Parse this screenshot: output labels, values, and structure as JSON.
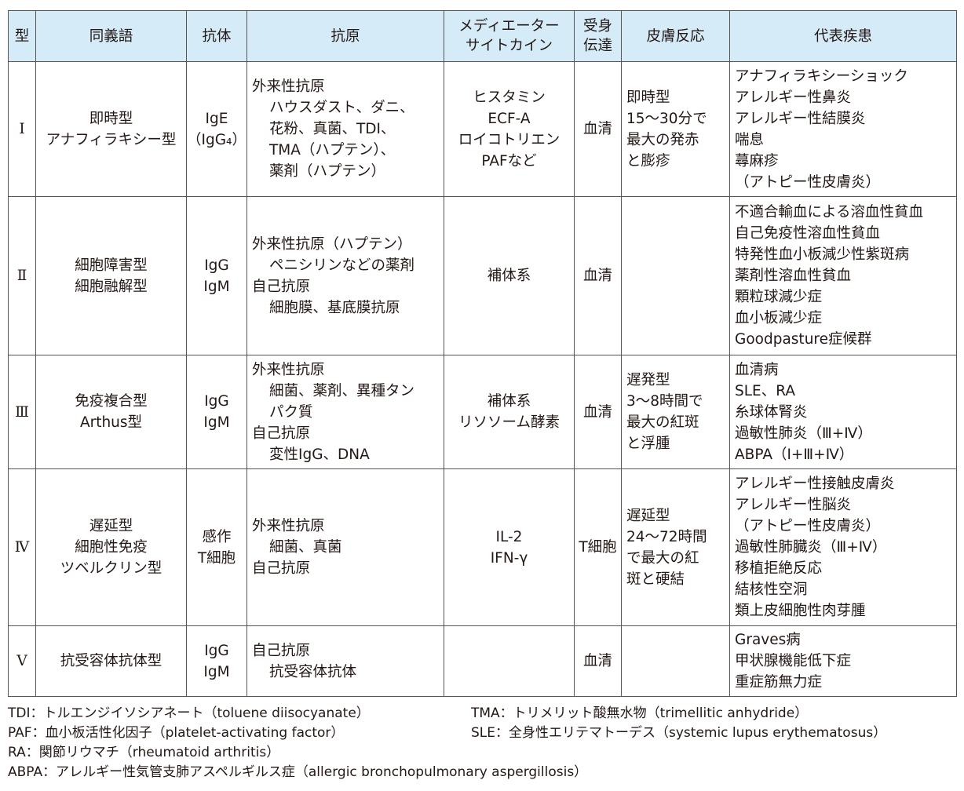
{
  "headers": [
    "型",
    "同義語",
    "抗体",
    "抗原",
    "メディエーター\nサイトカイン",
    "受身\n伝達",
    "皮膚反応",
    "代表疾患"
  ],
  "header_bg": "#d5ebf8",
  "rows": [
    {
      "type": "Ⅰ",
      "synonyms": [
        "即時型",
        "アナフィラキシー型"
      ],
      "antibody": [
        "IgE",
        "（IgG₄）"
      ],
      "antigen": [
        {
          "t": "外来性抗原",
          "i": 0
        },
        {
          "t": "ハウスダスト、ダニ、",
          "i": 1
        },
        {
          "t": "花粉、真菌、TDI、",
          "i": 1
        },
        {
          "t": "TMA（ハプテン）、",
          "i": 1
        },
        {
          "t": "薬剤（ハプテン）",
          "i": 1
        }
      ],
      "mediator": [
        "ヒスタミン",
        "ECF‐A",
        "ロイコトリエン",
        "PAFなど"
      ],
      "transfer": [
        "血清"
      ],
      "skin": [
        "即時型",
        "15〜30分で",
        "最大の発赤",
        "と膨疹"
      ],
      "diseases": [
        "アナフィラキシーショック",
        "アレルギー性鼻炎",
        "アレルギー性結膜炎",
        "喘息",
        "蕁麻疹",
        "（アトピー性皮膚炎）"
      ]
    },
    {
      "type": "Ⅱ",
      "synonyms": [
        "細胞障害型",
        "細胞融解型"
      ],
      "antibody": [
        "IgG",
        "IgM"
      ],
      "antigen": [
        {
          "t": "外来性抗原（ハプテン）",
          "i": 0
        },
        {
          "t": "ペニシリンなどの薬剤",
          "i": 1
        },
        {
          "t": "自己抗原",
          "i": 0
        },
        {
          "t": "細胞膜、基底膜抗原",
          "i": 1
        }
      ],
      "mediator": [
        "補体系"
      ],
      "transfer": [
        "血清"
      ],
      "skin": [],
      "diseases": [
        "不適合輸血による溶血性貧血",
        "自己免疫性溶血性貧血",
        "特発性血小板減少性紫斑病",
        "薬剤性溶血性貧血",
        "顆粒球減少症",
        "血小板減少症",
        "Goodpasture症候群"
      ]
    },
    {
      "type": "Ⅲ",
      "synonyms": [
        "免疫複合型",
        "Arthus型"
      ],
      "antibody": [
        "IgG",
        "IgM"
      ],
      "antigen": [
        {
          "t": "外来性抗原",
          "i": 0
        },
        {
          "t": "細菌、薬剤、異種タン",
          "i": 1
        },
        {
          "t": "パク質",
          "i": 1
        },
        {
          "t": "自己抗原",
          "i": 0
        },
        {
          "t": "変性IgG、DNA",
          "i": 1
        }
      ],
      "mediator": [
        "補体系",
        "リソソーム酵素"
      ],
      "transfer": [
        "血清"
      ],
      "skin": [
        "遅発型",
        "3〜8時間で",
        "最大の紅斑",
        "と浮腫"
      ],
      "diseases": [
        "血清病",
        "SLE、RA",
        "糸球体腎炎",
        "過敏性肺炎（Ⅲ+Ⅳ）",
        "ABPA（Ⅰ+Ⅲ+Ⅳ）"
      ]
    },
    {
      "type": "Ⅳ",
      "synonyms": [
        "遅延型",
        "細胞性免疫",
        "ツベルクリン型"
      ],
      "antibody": [
        "感作",
        "T細胞"
      ],
      "antigen": [
        {
          "t": "外来性抗原",
          "i": 0
        },
        {
          "t": "細菌、真菌",
          "i": 1
        },
        {
          "t": "自己抗原",
          "i": 0
        }
      ],
      "mediator": [
        "IL-2",
        "IFN-γ"
      ],
      "transfer": [
        "T細胞"
      ],
      "skin": [
        "遅延型",
        "24〜72時間",
        "で最大の紅",
        "斑と硬結"
      ],
      "diseases": [
        "アレルギー性接触皮膚炎",
        "アレルギー性脳炎",
        "（アトピー性皮膚炎）",
        "過敏性肺臓炎（Ⅲ+Ⅳ）",
        "移植拒絶反応",
        "結核性空洞",
        "類上皮細胞性肉芽腫"
      ]
    },
    {
      "type": "Ⅴ",
      "synonyms": [
        "抗受容体抗体型"
      ],
      "antibody": [
        "IgG",
        "IgM"
      ],
      "antigen": [
        {
          "t": "自己抗原",
          "i": 0
        },
        {
          "t": "抗受容体抗体",
          "i": 1
        }
      ],
      "mediator": [],
      "transfer": [
        "血清"
      ],
      "skin": [],
      "diseases": [
        "Graves病",
        "甲状腺機能低下症",
        "重症筋無力症"
      ]
    }
  ],
  "footnotes": [
    "TDI：トルエンジイソシアネート（toluene diisocyanate）",
    "TMA：トリメリット酸無水物（trimellitic anhydride）",
    "PAF：血小板活性化因子（platelet-activating factor）",
    "SLE：全身性エリテマトーデス（systemic lupus erythematosus）",
    "RA：関節リウマチ（rheumatoid arthritis）",
    "ABPA：アレルギー性気管支肺アスペルギルス症（allergic bronchopulmonary aspergillosis）"
  ]
}
